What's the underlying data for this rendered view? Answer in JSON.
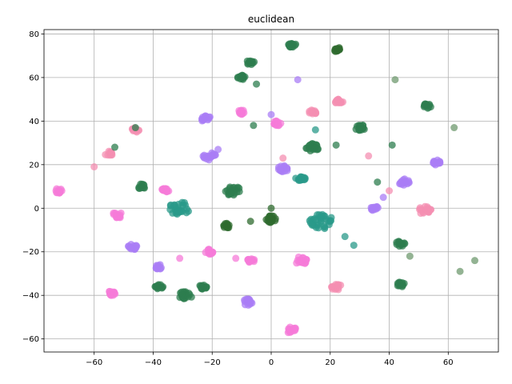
{
  "chart_data": {
    "type": "scatter",
    "title": "euclidean",
    "xlabel": "",
    "ylabel": "",
    "xlim": [
      -77,
      77
    ],
    "ylim": [
      -66,
      82
    ],
    "xticks": [
      -60,
      -40,
      -20,
      0,
      20,
      40,
      60
    ],
    "yticks": [
      -60,
      -40,
      -20,
      0,
      20,
      40,
      60,
      80
    ],
    "grid": true,
    "legend": "none",
    "colors": {
      "pink": "#f48fb1",
      "magenta": "#f57bd8",
      "purple": "#a97df5",
      "teal": "#2a9a8a",
      "green": "#2e7d4f",
      "darkgreen": "#2f6b2f",
      "sage": "#6f9a6f"
    },
    "clusters": [
      {
        "color": "teal",
        "x": -31,
        "y": 0,
        "s": 8
      },
      {
        "color": "teal",
        "x": 17,
        "y": -6,
        "s": 9
      },
      {
        "color": "green",
        "x": -13,
        "y": 8,
        "s": 6
      },
      {
        "color": "green",
        "x": -29,
        "y": -40,
        "s": 5
      },
      {
        "color": "darkgreen",
        "x": 0,
        "y": -5,
        "s": 4
      },
      {
        "color": "darkgreen",
        "x": -15,
        "y": -8,
        "s": 3
      },
      {
        "color": "green",
        "x": 7,
        "y": 75,
        "s": 3
      },
      {
        "color": "darkgreen",
        "x": 22,
        "y": 73,
        "s": 3
      },
      {
        "color": "green",
        "x": -7,
        "y": 67,
        "s": 3
      },
      {
        "color": "green",
        "x": -10,
        "y": 60,
        "s": 3
      },
      {
        "color": "green",
        "x": 53,
        "y": 47,
        "s": 3
      },
      {
        "color": "green",
        "x": 30,
        "y": 37,
        "s": 4
      },
      {
        "color": "green",
        "x": 44,
        "y": -16,
        "s": 4
      },
      {
        "color": "green",
        "x": 44,
        "y": -35,
        "s": 3
      },
      {
        "color": "green",
        "x": -44,
        "y": 10,
        "s": 3
      },
      {
        "color": "green",
        "x": -38,
        "y": -36,
        "s": 3
      },
      {
        "color": "green",
        "x": -23,
        "y": -36,
        "s": 3
      },
      {
        "color": "green",
        "x": 14,
        "y": 28,
        "s": 5
      },
      {
        "color": "teal",
        "x": 10,
        "y": 14,
        "s": 4
      },
      {
        "color": "purple",
        "x": -22,
        "y": 41,
        "s": 4
      },
      {
        "color": "purple",
        "x": -21,
        "y": 24,
        "s": 5
      },
      {
        "color": "purple",
        "x": -47,
        "y": -18,
        "s": 4
      },
      {
        "color": "purple",
        "x": -8,
        "y": -43,
        "s": 4
      },
      {
        "color": "purple",
        "x": 35,
        "y": 0,
        "s": 3
      },
      {
        "color": "purple",
        "x": 45,
        "y": 12,
        "s": 4
      },
      {
        "color": "purple",
        "x": 56,
        "y": 21,
        "s": 3
      },
      {
        "color": "purple",
        "x": 4,
        "y": 18,
        "s": 4
      },
      {
        "color": "purple",
        "x": -38,
        "y": -27,
        "s": 3
      },
      {
        "color": "pink",
        "x": 52,
        "y": -1,
        "s": 5
      },
      {
        "color": "pink",
        "x": 23,
        "y": 49,
        "s": 3
      },
      {
        "color": "pink",
        "x": -46,
        "y": 36,
        "s": 3
      },
      {
        "color": "pink",
        "x": -55,
        "y": 25,
        "s": 3
      },
      {
        "color": "pink",
        "x": 14,
        "y": 44,
        "s": 3
      },
      {
        "color": "pink",
        "x": 22,
        "y": -36,
        "s": 4
      },
      {
        "color": "magenta",
        "x": 10,
        "y": -24,
        "s": 5
      },
      {
        "color": "magenta",
        "x": -7,
        "y": -24,
        "s": 3
      },
      {
        "color": "magenta",
        "x": -21,
        "y": -20,
        "s": 3
      },
      {
        "color": "magenta",
        "x": 7,
        "y": -56,
        "s": 4
      },
      {
        "color": "magenta",
        "x": -52,
        "y": -3,
        "s": 4
      },
      {
        "color": "magenta",
        "x": -72,
        "y": 8,
        "s": 3
      },
      {
        "color": "magenta",
        "x": -54,
        "y": -39,
        "s": 3
      },
      {
        "color": "magenta",
        "x": 2,
        "y": 39,
        "s": 3
      },
      {
        "color": "magenta",
        "x": -10,
        "y": 44,
        "s": 3
      },
      {
        "color": "magenta",
        "x": -36,
        "y": 8,
        "s": 3
      }
    ],
    "points": [
      {
        "color": "sage",
        "x": 42,
        "y": 59
      },
      {
        "color": "sage",
        "x": 62,
        "y": 37
      },
      {
        "color": "sage",
        "x": 69,
        "y": -24
      },
      {
        "color": "sage",
        "x": 64,
        "y": -29
      },
      {
        "color": "sage",
        "x": 47,
        "y": -22
      },
      {
        "color": "pink",
        "x": -60,
        "y": 19
      },
      {
        "color": "pink",
        "x": 40,
        "y": 8
      },
      {
        "color": "purple",
        "x": 9,
        "y": 59
      },
      {
        "color": "purple",
        "x": -18,
        "y": 27
      },
      {
        "color": "purple",
        "x": 38,
        "y": 5
      },
      {
        "color": "teal",
        "x": 15,
        "y": 36
      },
      {
        "color": "teal",
        "x": 25,
        "y": -13
      },
      {
        "color": "teal",
        "x": 28,
        "y": -17
      },
      {
        "color": "green",
        "x": -6,
        "y": 38
      },
      {
        "color": "green",
        "x": -5,
        "y": 57
      },
      {
        "color": "green",
        "x": -46,
        "y": 37
      },
      {
        "color": "green",
        "x": -53,
        "y": 28
      },
      {
        "color": "green",
        "x": 36,
        "y": 12
      },
      {
        "color": "green",
        "x": 41,
        "y": 29
      },
      {
        "color": "green",
        "x": 22,
        "y": 29
      },
      {
        "color": "darkgreen",
        "x": 0,
        "y": 0
      },
      {
        "color": "darkgreen",
        "x": -7,
        "y": -6
      },
      {
        "color": "pink",
        "x": 33,
        "y": 24
      },
      {
        "color": "pink",
        "x": 4,
        "y": 23
      },
      {
        "color": "purple",
        "x": 0,
        "y": 43
      },
      {
        "color": "magenta",
        "x": -12,
        "y": -23
      },
      {
        "color": "magenta",
        "x": -31,
        "y": -23
      }
    ]
  }
}
